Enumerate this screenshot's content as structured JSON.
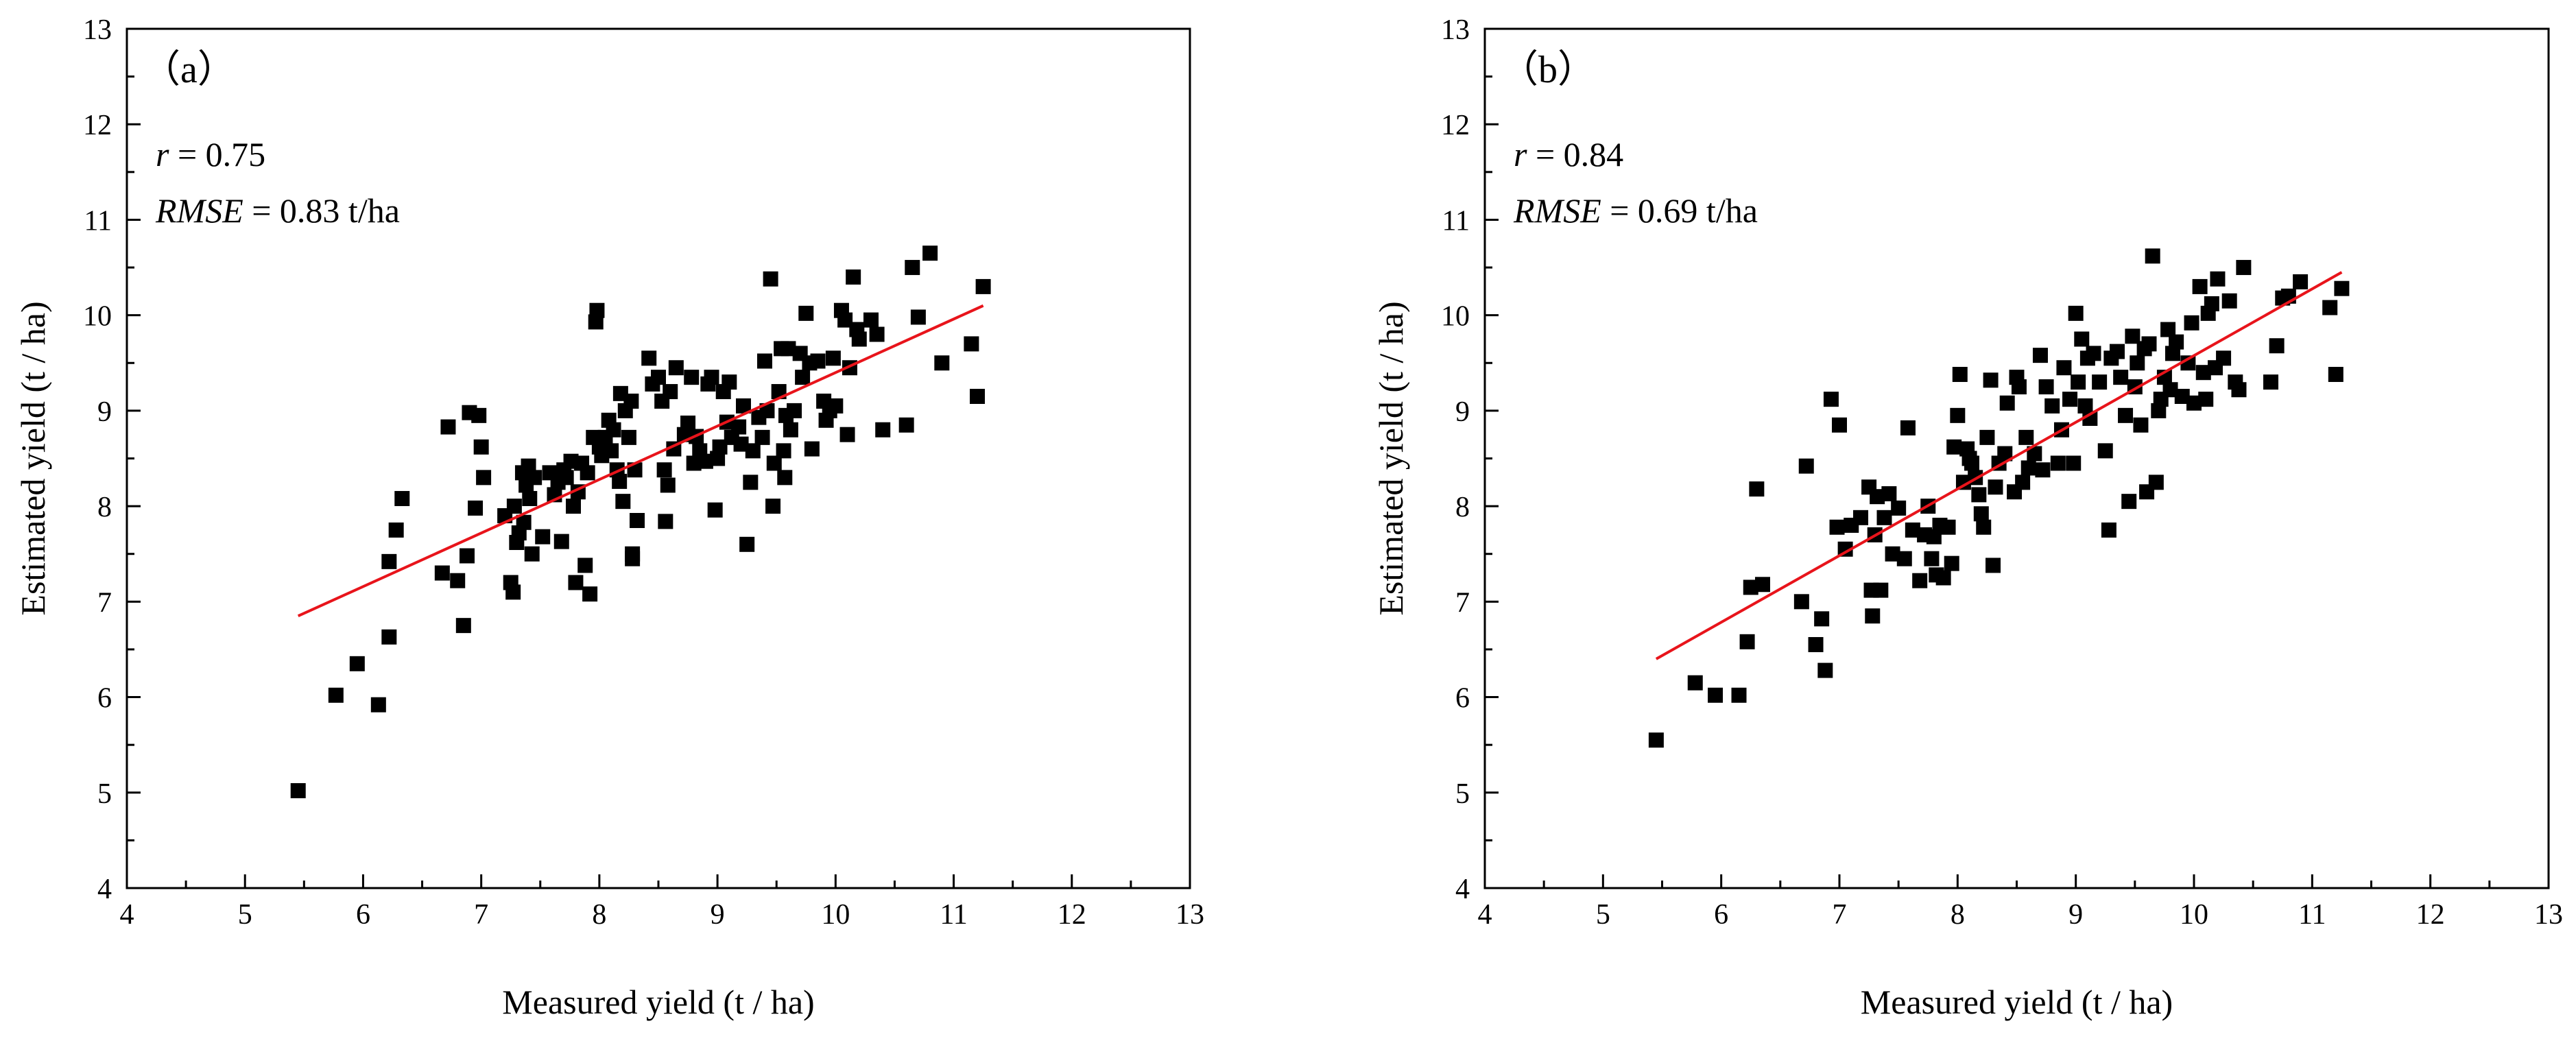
{
  "figure": {
    "panels": [
      {
        "panel_label": "（a）",
        "stat_r_symbol": "r",
        "stat_r_value": " = 0.75",
        "stat_rmse_symbol": "RMSE",
        "stat_rmse_value": " = 0.83 t/ha"
      },
      {
        "panel_label": "（b）",
        "stat_r_symbol": "r",
        "stat_r_value": " = 0.84",
        "stat_rmse_symbol": "RMSE",
        "stat_rmse_value": " = 0.69 t/ha"
      }
    ]
  },
  "colors": {
    "marker": "#000000",
    "fit_line": "#e8141b",
    "axes": "#000000"
  },
  "chart_data": [
    {
      "type": "scatter",
      "title": "",
      "xlabel": "Measured yield (t / ha)",
      "ylabel": "Estimated yield (t / ha)",
      "xlim": [
        4,
        13
      ],
      "ylim": [
        4,
        13
      ],
      "x_ticks": [
        4,
        5,
        6,
        7,
        8,
        9,
        10,
        11,
        12,
        13
      ],
      "y_ticks": [
        4,
        5,
        6,
        7,
        8,
        9,
        10,
        11,
        12,
        13
      ],
      "fit_line": {
        "x": [
          5.45,
          11.25
        ],
        "y": [
          6.85,
          10.1
        ]
      },
      "points": [
        [
          5.45,
          5.02
        ],
        [
          5.77,
          6.02
        ],
        [
          5.95,
          6.35
        ],
        [
          6.13,
          5.92
        ],
        [
          6.22,
          6.63
        ],
        [
          6.22,
          7.42
        ],
        [
          6.28,
          7.75
        ],
        [
          6.33,
          8.08
        ],
        [
          6.67,
          7.3
        ],
        [
          6.72,
          8.83
        ],
        [
          6.8,
          7.22
        ],
        [
          6.85,
          6.75
        ],
        [
          6.88,
          7.48
        ],
        [
          6.9,
          8.98
        ],
        [
          6.95,
          7.98
        ],
        [
          6.98,
          8.95
        ],
        [
          7.0,
          8.62
        ],
        [
          7.02,
          8.3
        ],
        [
          7.2,
          7.9
        ],
        [
          7.25,
          7.2
        ],
        [
          7.27,
          7.1
        ],
        [
          7.28,
          8.0
        ],
        [
          7.3,
          7.62
        ],
        [
          7.32,
          7.72
        ],
        [
          7.35,
          8.35
        ],
        [
          7.36,
          7.83
        ],
        [
          7.38,
          8.22
        ],
        [
          7.4,
          8.42
        ],
        [
          7.41,
          8.08
        ],
        [
          7.43,
          7.5
        ],
        [
          7.45,
          8.3
        ],
        [
          7.52,
          7.68
        ],
        [
          7.58,
          8.35
        ],
        [
          7.62,
          8.12
        ],
        [
          7.65,
          8.25
        ],
        [
          7.68,
          7.63
        ],
        [
          7.7,
          8.38
        ],
        [
          7.72,
          8.3
        ],
        [
          7.76,
          8.47
        ],
        [
          7.78,
          8.0
        ],
        [
          7.8,
          7.2
        ],
        [
          7.82,
          8.15
        ],
        [
          7.85,
          8.45
        ],
        [
          7.88,
          7.38
        ],
        [
          7.9,
          8.35
        ],
        [
          7.92,
          7.08
        ],
        [
          7.95,
          8.72
        ],
        [
          7.97,
          9.93
        ],
        [
          7.98,
          10.05
        ],
        [
          8.0,
          8.62
        ],
        [
          8.02,
          8.53
        ],
        [
          8.05,
          8.72
        ],
        [
          8.08,
          8.9
        ],
        [
          8.1,
          8.58
        ],
        [
          8.12,
          8.8
        ],
        [
          8.15,
          8.38
        ],
        [
          8.17,
          8.26
        ],
        [
          8.18,
          9.18
        ],
        [
          8.2,
          8.05
        ],
        [
          8.22,
          9.0
        ],
        [
          8.25,
          8.72
        ],
        [
          8.27,
          9.1
        ],
        [
          8.28,
          7.5
        ],
        [
          8.28,
          7.45
        ],
        [
          8.3,
          8.38
        ],
        [
          8.32,
          7.85
        ],
        [
          8.42,
          9.55
        ],
        [
          8.45,
          9.28
        ],
        [
          8.5,
          9.35
        ],
        [
          8.53,
          9.1
        ],
        [
          8.55,
          8.38
        ],
        [
          8.56,
          7.84
        ],
        [
          8.58,
          8.22
        ],
        [
          8.6,
          9.2
        ],
        [
          8.63,
          8.6
        ],
        [
          8.65,
          9.45
        ],
        [
          8.72,
          8.75
        ],
        [
          8.75,
          8.87
        ],
        [
          8.78,
          9.35
        ],
        [
          8.8,
          8.45
        ],
        [
          8.82,
          8.73
        ],
        [
          8.85,
          8.58
        ],
        [
          8.9,
          8.47
        ],
        [
          8.92,
          9.28
        ],
        [
          8.95,
          9.35
        ],
        [
          8.98,
          7.96
        ],
        [
          9.0,
          8.5
        ],
        [
          9.02,
          8.62
        ],
        [
          9.05,
          9.2
        ],
        [
          9.08,
          8.88
        ],
        [
          9.1,
          9.3
        ],
        [
          9.12,
          8.72
        ],
        [
          9.18,
          8.83
        ],
        [
          9.2,
          8.65
        ],
        [
          9.22,
          9.05
        ],
        [
          9.25,
          7.6
        ],
        [
          9.28,
          8.25
        ],
        [
          9.3,
          8.58
        ],
        [
          9.35,
          8.93
        ],
        [
          9.38,
          8.72
        ],
        [
          9.4,
          9.52
        ],
        [
          9.42,
          9.0
        ],
        [
          9.45,
          10.38
        ],
        [
          9.47,
          8.0
        ],
        [
          9.48,
          8.45
        ],
        [
          9.52,
          9.2
        ],
        [
          9.54,
          9.65
        ],
        [
          9.56,
          8.58
        ],
        [
          9.57,
          8.3
        ],
        [
          9.58,
          8.95
        ],
        [
          9.6,
          9.65
        ],
        [
          9.62,
          8.8
        ],
        [
          9.65,
          9.0
        ],
        [
          9.7,
          9.6
        ],
        [
          9.72,
          9.35
        ],
        [
          9.75,
          10.02
        ],
        [
          9.78,
          9.5
        ],
        [
          9.8,
          8.6
        ],
        [
          9.85,
          9.52
        ],
        [
          9.9,
          9.1
        ],
        [
          9.92,
          8.9
        ],
        [
          9.95,
          9.0
        ],
        [
          9.98,
          9.55
        ],
        [
          10.0,
          9.05
        ],
        [
          10.05,
          10.05
        ],
        [
          10.08,
          9.95
        ],
        [
          10.1,
          8.75
        ],
        [
          10.12,
          9.45
        ],
        [
          10.15,
          10.4
        ],
        [
          10.18,
          9.85
        ],
        [
          10.2,
          9.75
        ],
        [
          10.3,
          9.95
        ],
        [
          10.35,
          9.8
        ],
        [
          10.4,
          8.8
        ],
        [
          10.6,
          8.85
        ],
        [
          10.65,
          10.5
        ],
        [
          10.7,
          9.98
        ],
        [
          10.8,
          10.65
        ],
        [
          10.9,
          9.5
        ],
        [
          11.15,
          9.7
        ],
        [
          11.2,
          9.15
        ],
        [
          11.25,
          10.3
        ]
      ]
    },
    {
      "type": "scatter",
      "title": "",
      "xlabel": "Measured yield (t / ha)",
      "ylabel": "Estimated yield (t / ha)",
      "xlim": [
        4,
        13
      ],
      "ylim": [
        4,
        13
      ],
      "x_ticks": [
        4,
        5,
        6,
        7,
        8,
        9,
        10,
        11,
        12,
        13
      ],
      "y_ticks": [
        4,
        5,
        6,
        7,
        8,
        9,
        10,
        11,
        12,
        13
      ],
      "fit_line": {
        "x": [
          5.45,
          11.25
        ],
        "y": [
          6.4,
          10.45
        ]
      },
      "points": [
        [
          5.45,
          5.55
        ],
        [
          5.78,
          6.15
        ],
        [
          5.95,
          6.02
        ],
        [
          6.15,
          6.02
        ],
        [
          6.22,
          6.58
        ],
        [
          6.25,
          7.15
        ],
        [
          6.3,
          8.18
        ],
        [
          6.35,
          7.18
        ],
        [
          6.68,
          7.0
        ],
        [
          6.72,
          8.42
        ],
        [
          6.8,
          6.55
        ],
        [
          6.85,
          6.82
        ],
        [
          6.88,
          6.28
        ],
        [
          6.93,
          9.12
        ],
        [
          6.98,
          7.78
        ],
        [
          7.0,
          8.85
        ],
        [
          7.05,
          7.55
        ],
        [
          7.1,
          7.8
        ],
        [
          7.18,
          7.88
        ],
        [
          7.25,
          8.2
        ],
        [
          7.27,
          7.12
        ],
        [
          7.28,
          6.85
        ],
        [
          7.3,
          7.7
        ],
        [
          7.32,
          8.1
        ],
        [
          7.35,
          7.12
        ],
        [
          7.38,
          7.88
        ],
        [
          7.42,
          8.13
        ],
        [
          7.45,
          7.5
        ],
        [
          7.5,
          7.98
        ],
        [
          7.55,
          7.45
        ],
        [
          7.58,
          8.82
        ],
        [
          7.62,
          7.75
        ],
        [
          7.68,
          7.22
        ],
        [
          7.72,
          7.7
        ],
        [
          7.75,
          8.0
        ],
        [
          7.78,
          7.45
        ],
        [
          7.8,
          7.68
        ],
        [
          7.82,
          7.28
        ],
        [
          7.85,
          7.8
        ],
        [
          7.88,
          7.25
        ],
        [
          7.92,
          7.78
        ],
        [
          7.95,
          7.4
        ],
        [
          7.97,
          8.62
        ],
        [
          8.0,
          8.95
        ],
        [
          8.02,
          9.38
        ],
        [
          8.05,
          8.25
        ],
        [
          8.08,
          8.6
        ],
        [
          8.1,
          8.5
        ],
        [
          8.12,
          8.45
        ],
        [
          8.15,
          8.3
        ],
        [
          8.18,
          8.12
        ],
        [
          8.2,
          7.92
        ],
        [
          8.22,
          7.78
        ],
        [
          8.25,
          8.72
        ],
        [
          8.28,
          9.32
        ],
        [
          8.3,
          7.38
        ],
        [
          8.32,
          8.2
        ],
        [
          8.35,
          8.45
        ],
        [
          8.4,
          8.55
        ],
        [
          8.42,
          9.08
        ],
        [
          8.48,
          8.15
        ],
        [
          8.5,
          9.35
        ],
        [
          8.52,
          9.25
        ],
        [
          8.55,
          8.25
        ],
        [
          8.58,
          8.72
        ],
        [
          8.6,
          8.4
        ],
        [
          8.65,
          8.55
        ],
        [
          8.7,
          9.58
        ],
        [
          8.72,
          8.38
        ],
        [
          8.75,
          9.25
        ],
        [
          8.8,
          9.05
        ],
        [
          8.85,
          8.45
        ],
        [
          8.88,
          8.8
        ],
        [
          8.9,
          9.45
        ],
        [
          8.95,
          9.12
        ],
        [
          8.98,
          8.45
        ],
        [
          9.0,
          10.02
        ],
        [
          9.02,
          9.3
        ],
        [
          9.05,
          9.75
        ],
        [
          9.08,
          9.05
        ],
        [
          9.1,
          9.55
        ],
        [
          9.12,
          8.92
        ],
        [
          9.15,
          9.6
        ],
        [
          9.2,
          9.3
        ],
        [
          9.25,
          8.58
        ],
        [
          9.28,
          7.75
        ],
        [
          9.3,
          9.55
        ],
        [
          9.35,
          9.62
        ],
        [
          9.38,
          9.35
        ],
        [
          9.42,
          8.95
        ],
        [
          9.45,
          8.05
        ],
        [
          9.48,
          9.78
        ],
        [
          9.5,
          9.25
        ],
        [
          9.52,
          9.5
        ],
        [
          9.55,
          8.85
        ],
        [
          9.58,
          9.65
        ],
        [
          9.6,
          8.15
        ],
        [
          9.62,
          9.7
        ],
        [
          9.65,
          10.62
        ],
        [
          9.68,
          8.25
        ],
        [
          9.7,
          9.0
        ],
        [
          9.72,
          9.12
        ],
        [
          9.75,
          9.35
        ],
        [
          9.78,
          9.85
        ],
        [
          9.8,
          9.22
        ],
        [
          9.82,
          9.6
        ],
        [
          9.85,
          9.72
        ],
        [
          9.9,
          9.15
        ],
        [
          9.95,
          9.5
        ],
        [
          9.98,
          9.92
        ],
        [
          10.0,
          9.08
        ],
        [
          10.05,
          10.3
        ],
        [
          10.08,
          9.4
        ],
        [
          10.1,
          9.12
        ],
        [
          10.12,
          10.02
        ],
        [
          10.15,
          10.12
        ],
        [
          10.18,
          9.45
        ],
        [
          10.2,
          10.38
        ],
        [
          10.25,
          9.55
        ],
        [
          10.3,
          10.15
        ],
        [
          10.35,
          9.3
        ],
        [
          10.38,
          9.22
        ],
        [
          10.42,
          10.5
        ],
        [
          10.65,
          9.3
        ],
        [
          10.7,
          9.68
        ],
        [
          10.75,
          10.18
        ],
        [
          10.8,
          10.2
        ],
        [
          10.9,
          10.35
        ],
        [
          11.15,
          10.08
        ],
        [
          11.2,
          9.38
        ],
        [
          11.25,
          10.28
        ]
      ]
    }
  ]
}
